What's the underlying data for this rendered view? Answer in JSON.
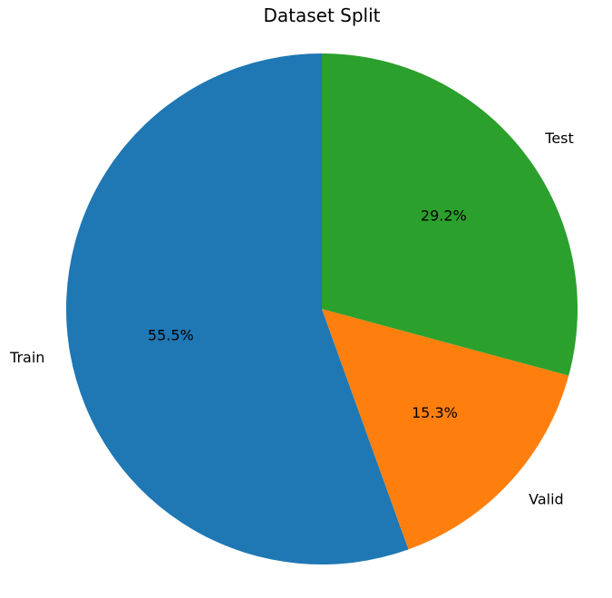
{
  "chart_data": {
    "type": "pie",
    "title": "Dataset Split",
    "start_angle_deg": 90,
    "direction": "counterclockwise",
    "slices": [
      {
        "label": "Train",
        "value": 55.5,
        "pct_label": "55.5%",
        "color": "#1f77b4"
      },
      {
        "label": "Valid",
        "value": 15.3,
        "pct_label": "15.3%",
        "color": "#ff7f0e"
      },
      {
        "label": "Test",
        "value": 29.2,
        "pct_label": "29.2%",
        "color": "#2ca02c"
      }
    ]
  }
}
